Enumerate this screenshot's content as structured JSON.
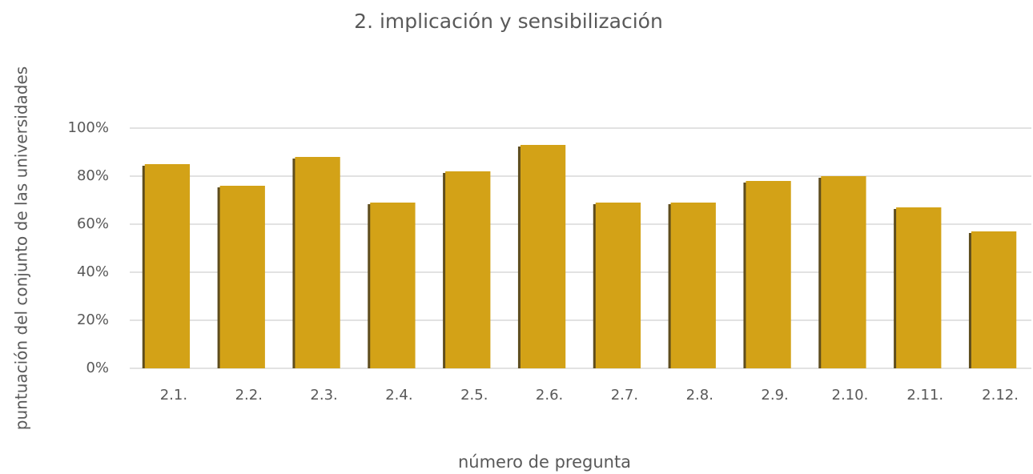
{
  "chart_data": {
    "type": "bar",
    "title": "2. implicación y sensibilización",
    "x_label": "número de pregunta",
    "y_label": "puntuación del conjunto de las universidades",
    "categories": [
      "2.1.",
      "2.2.",
      "2.3.",
      "2.4.",
      "2.5.",
      "2.6.",
      "2.7.",
      "2.8.",
      "2.9.",
      "2.10.",
      "2.11.",
      "2.12."
    ],
    "values": [
      85,
      76,
      88,
      69,
      82,
      93,
      69,
      69,
      78,
      80,
      67,
      57
    ],
    "color": "#d3a217",
    "ylim": [
      0,
      100
    ],
    "yticks": [
      {
        "value": 0,
        "label": "0%"
      },
      {
        "value": 20,
        "label": "20%"
      },
      {
        "value": 40,
        "label": "40%"
      },
      {
        "value": 60,
        "label": "60%"
      },
      {
        "value": 80,
        "label": "80%"
      },
      {
        "value": 100,
        "label": "100%"
      }
    ],
    "grid": true
  }
}
